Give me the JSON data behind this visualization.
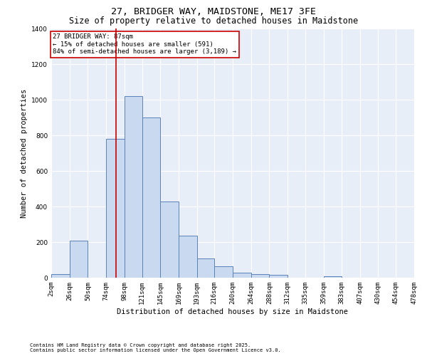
{
  "title": "27, BRIDGER WAY, MAIDSTONE, ME17 3FE",
  "subtitle": "Size of property relative to detached houses in Maidstone",
  "xlabel": "Distribution of detached houses by size in Maidstone",
  "ylabel": "Number of detached properties",
  "footnote1": "Contains HM Land Registry data © Crown copyright and database right 2025.",
  "footnote2": "Contains public sector information licensed under the Open Government Licence v3.0.",
  "bar_edges": [
    2,
    26,
    50,
    74,
    98,
    121,
    145,
    169,
    193,
    216,
    240,
    264,
    288,
    312,
    335,
    359,
    383,
    407,
    430,
    454,
    478
  ],
  "bar_heights": [
    20,
    210,
    0,
    780,
    1020,
    900,
    430,
    235,
    110,
    65,
    30,
    20,
    15,
    0,
    0,
    10,
    0,
    0,
    0,
    0
  ],
  "bar_color": "#c9d9f0",
  "bar_edge_color": "#5b82b8",
  "vline_x": 87,
  "vline_color": "#cc0000",
  "annotation_text": "27 BRIDGER WAY: 87sqm\n← 15% of detached houses are smaller (591)\n84% of semi-detached houses are larger (3,189) →",
  "annotation_box_color": "#ffffff",
  "annotation_border_color": "#cc0000",
  "ylim": [
    0,
    1400
  ],
  "yticks": [
    0,
    200,
    400,
    600,
    800,
    1000,
    1200,
    1400
  ],
  "xtick_labels": [
    "2sqm",
    "26sqm",
    "50sqm",
    "74sqm",
    "98sqm",
    "121sqm",
    "145sqm",
    "169sqm",
    "193sqm",
    "216sqm",
    "240sqm",
    "264sqm",
    "288sqm",
    "312sqm",
    "335sqm",
    "359sqm",
    "383sqm",
    "407sqm",
    "430sqm",
    "454sqm",
    "478sqm"
  ],
  "bg_color": "#e8eef8",
  "fig_bg_color": "#ffffff",
  "grid_color": "#ffffff",
  "title_fontsize": 9.5,
  "subtitle_fontsize": 8.5,
  "ylabel_fontsize": 7.5,
  "xlabel_fontsize": 7.5,
  "tick_fontsize": 6.5,
  "annot_fontsize": 6.5,
  "footnote_fontsize": 5.0
}
